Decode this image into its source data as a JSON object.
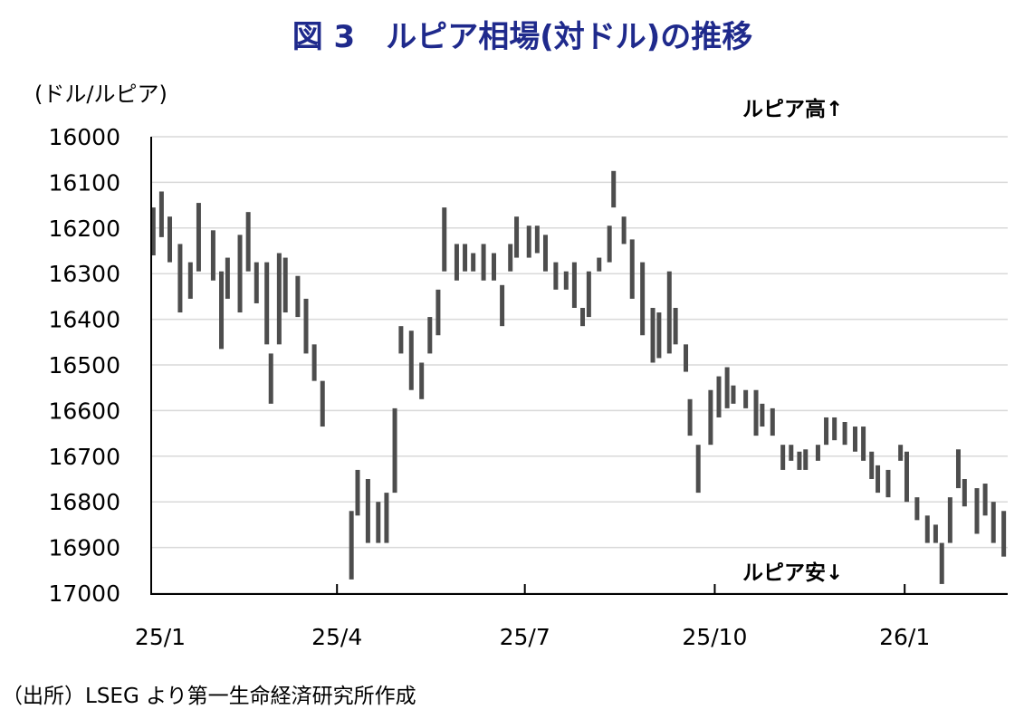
{
  "chart_data": {
    "type": "bar",
    "subtype": "high-low range",
    "title": "図 3　ルピア相場(対ドル)の推移",
    "ylabel": "(ドル/ルピア)",
    "ylim": [
      16000,
      17000
    ],
    "y_inverted": true,
    "yticks": [
      16000,
      16100,
      16200,
      16300,
      16400,
      16500,
      16600,
      16700,
      16800,
      16900,
      17000
    ],
    "xticks": [
      {
        "label": "25/1",
        "date": "2025-01-01"
      },
      {
        "label": "25/4",
        "date": "2025-04-01"
      },
      {
        "label": "25/7",
        "date": "2025-07-01"
      },
      {
        "label": "25/10",
        "date": "2025-10-01"
      },
      {
        "label": "26/1",
        "date": "2026-01-01"
      }
    ],
    "grid": true,
    "annotations": {
      "top": "ルピア高↑",
      "bottom": "ルピア安↓"
    },
    "source": "（出所）LSEG より第一生命経済研究所作成",
    "color": "#4d4d4d",
    "points": [
      [
        "2025-01-02",
        16155,
        16260
      ],
      [
        "2025-01-06",
        16120,
        16220
      ],
      [
        "2025-01-10",
        16175,
        16275
      ],
      [
        "2025-01-15",
        16235,
        16385
      ],
      [
        "2025-01-20",
        16275,
        16355
      ],
      [
        "2025-01-24",
        16145,
        16295
      ],
      [
        "2025-01-31",
        16205,
        16315
      ],
      [
        "2025-02-04",
        16295,
        16465
      ],
      [
        "2025-02-07",
        16265,
        16355
      ],
      [
        "2025-02-13",
        16215,
        16385
      ],
      [
        "2025-02-17",
        16165,
        16295
      ],
      [
        "2025-02-21",
        16275,
        16365
      ],
      [
        "2025-02-26",
        16275,
        16455
      ],
      [
        "2025-02-28",
        16475,
        16585
      ],
      [
        "2025-03-04",
        16255,
        16455
      ],
      [
        "2025-03-07",
        16265,
        16385
      ],
      [
        "2025-03-13",
        16305,
        16395
      ],
      [
        "2025-03-17",
        16355,
        16475
      ],
      [
        "2025-03-21",
        16455,
        16535
      ],
      [
        "2025-03-25",
        16535,
        16635
      ],
      [
        "2025-04-08",
        16820,
        16970
      ],
      [
        "2025-04-11",
        16730,
        16830
      ],
      [
        "2025-04-16",
        16750,
        16890
      ],
      [
        "2025-04-21",
        16800,
        16890
      ],
      [
        "2025-04-25",
        16780,
        16890
      ],
      [
        "2025-04-29",
        16595,
        16780
      ],
      [
        "2025-05-02",
        16415,
        16475
      ],
      [
        "2025-05-07",
        16425,
        16555
      ],
      [
        "2025-05-12",
        16495,
        16575
      ],
      [
        "2025-05-16",
        16395,
        16475
      ],
      [
        "2025-05-20",
        16335,
        16435
      ],
      [
        "2025-05-23",
        16155,
        16295
      ],
      [
        "2025-05-29",
        16235,
        16315
      ],
      [
        "2025-06-02",
        16235,
        16295
      ],
      [
        "2025-06-06",
        16255,
        16295
      ],
      [
        "2025-06-11",
        16235,
        16315
      ],
      [
        "2025-06-16",
        16255,
        16315
      ],
      [
        "2025-06-20",
        16325,
        16415
      ],
      [
        "2025-06-24",
        16235,
        16295
      ],
      [
        "2025-06-27",
        16175,
        16265
      ],
      [
        "2025-07-03",
        16195,
        16265
      ],
      [
        "2025-07-07",
        16195,
        16255
      ],
      [
        "2025-07-11",
        16215,
        16295
      ],
      [
        "2025-07-16",
        16275,
        16335
      ],
      [
        "2025-07-21",
        16295,
        16335
      ],
      [
        "2025-07-25",
        16275,
        16375
      ],
      [
        "2025-07-29",
        16375,
        16415
      ],
      [
        "2025-08-01",
        16295,
        16395
      ],
      [
        "2025-08-06",
        16265,
        16295
      ],
      [
        "2025-08-11",
        16195,
        16275
      ],
      [
        "2025-08-13",
        16075,
        16155
      ],
      [
        "2025-08-18",
        16175,
        16235
      ],
      [
        "2025-08-22",
        16225,
        16355
      ],
      [
        "2025-08-27",
        16275,
        16435
      ],
      [
        "2025-09-01",
        16375,
        16495
      ],
      [
        "2025-09-04",
        16385,
        16485
      ],
      [
        "2025-09-09",
        16295,
        16475
      ],
      [
        "2025-09-12",
        16375,
        16455
      ],
      [
        "2025-09-17",
        16455,
        16515
      ],
      [
        "2025-09-19",
        16575,
        16655
      ],
      [
        "2025-09-23",
        16675,
        16780
      ],
      [
        "2025-09-29",
        16555,
        16675
      ],
      [
        "2025-10-03",
        16525,
        16615
      ],
      [
        "2025-10-07",
        16505,
        16595
      ],
      [
        "2025-10-10",
        16545,
        16585
      ],
      [
        "2025-10-16",
        16555,
        16595
      ],
      [
        "2025-10-21",
        16555,
        16655
      ],
      [
        "2025-10-24",
        16585,
        16635
      ],
      [
        "2025-10-29",
        16595,
        16655
      ],
      [
        "2025-11-03",
        16675,
        16730
      ],
      [
        "2025-11-07",
        16675,
        16710
      ],
      [
        "2025-11-11",
        16690,
        16730
      ],
      [
        "2025-11-14",
        16685,
        16730
      ],
      [
        "2025-11-20",
        16675,
        16710
      ],
      [
        "2025-11-24",
        16615,
        16675
      ],
      [
        "2025-11-28",
        16615,
        16665
      ],
      [
        "2025-12-03",
        16625,
        16675
      ],
      [
        "2025-12-08",
        16635,
        16690
      ],
      [
        "2025-12-12",
        16635,
        16710
      ],
      [
        "2025-12-16",
        16690,
        16750
      ],
      [
        "2025-12-19",
        16720,
        16780
      ],
      [
        "2025-12-24",
        16730,
        16790
      ],
      [
        "2025-12-30",
        16675,
        16710
      ],
      [
        "2026-01-02",
        16690,
        16800
      ],
      [
        "2026-01-07",
        16790,
        16840
      ],
      [
        "2026-01-12",
        16830,
        16890
      ],
      [
        "2026-01-16",
        16850,
        16890
      ],
      [
        "2026-01-19",
        16890,
        16980
      ],
      [
        "2026-01-23",
        16790,
        16890
      ],
      [
        "2026-01-27",
        16685,
        16770
      ],
      [
        "2026-01-30",
        16750,
        16810
      ],
      [
        "2026-02-05",
        16770,
        16870
      ],
      [
        "2026-02-09",
        16760,
        16830
      ],
      [
        "2026-02-13",
        16800,
        16890
      ],
      [
        "2026-02-18",
        16820,
        16920
      ]
    ]
  }
}
